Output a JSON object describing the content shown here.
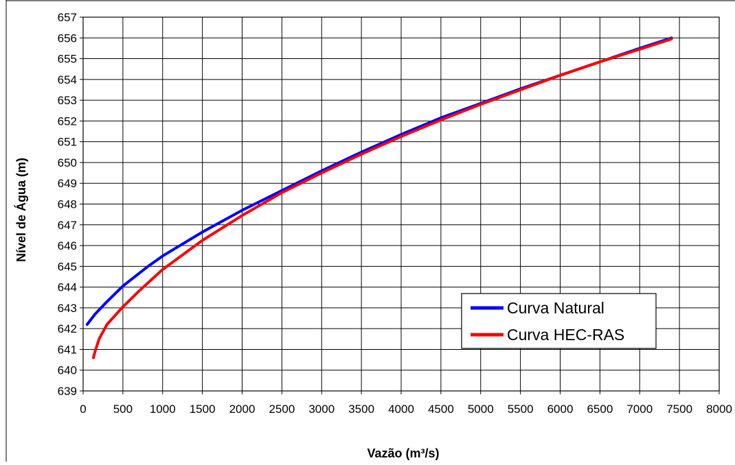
{
  "chart_data": {
    "type": "line",
    "xlabel": "Vazão (m³/s)",
    "ylabel": "Nível de Água (m)",
    "xlim": [
      0,
      8000
    ],
    "ylim": [
      639,
      657
    ],
    "x_ticks": [
      0,
      500,
      1000,
      1500,
      2000,
      2500,
      3000,
      3500,
      4000,
      4500,
      5000,
      5500,
      6000,
      6500,
      7000,
      7500,
      8000
    ],
    "y_ticks": [
      639,
      640,
      641,
      642,
      643,
      644,
      645,
      646,
      647,
      648,
      649,
      650,
      651,
      652,
      653,
      654,
      655,
      656,
      657
    ],
    "grid": true,
    "legend_position": "lower-right",
    "series": [
      {
        "name": "Curva Natural",
        "color": "#0000ff",
        "x": [
          50,
          150,
          300,
          500,
          800,
          1000,
          1500,
          2000,
          2500,
          3000,
          3500,
          4000,
          4500,
          5000,
          5500,
          6000,
          6500,
          7000,
          7400
        ],
        "y": [
          642.2,
          642.7,
          643.3,
          644.05,
          644.95,
          645.5,
          646.65,
          647.7,
          648.65,
          649.6,
          650.5,
          651.35,
          652.15,
          652.85,
          653.55,
          654.2,
          654.85,
          655.5,
          656.0
        ]
      },
      {
        "name": "Curva HEC-RAS",
        "color": "#ff0000",
        "x": [
          130,
          150,
          200,
          300,
          500,
          700,
          1000,
          1500,
          2000,
          2500,
          3000,
          3500,
          4000,
          4500,
          5000,
          5500,
          6000,
          6500,
          7000,
          7400
        ],
        "y": [
          640.6,
          640.9,
          641.5,
          642.2,
          643.05,
          643.8,
          644.85,
          646.25,
          647.45,
          648.55,
          649.5,
          650.4,
          651.25,
          652.05,
          652.8,
          653.5,
          654.2,
          654.85,
          655.45,
          655.95
        ]
      }
    ]
  }
}
